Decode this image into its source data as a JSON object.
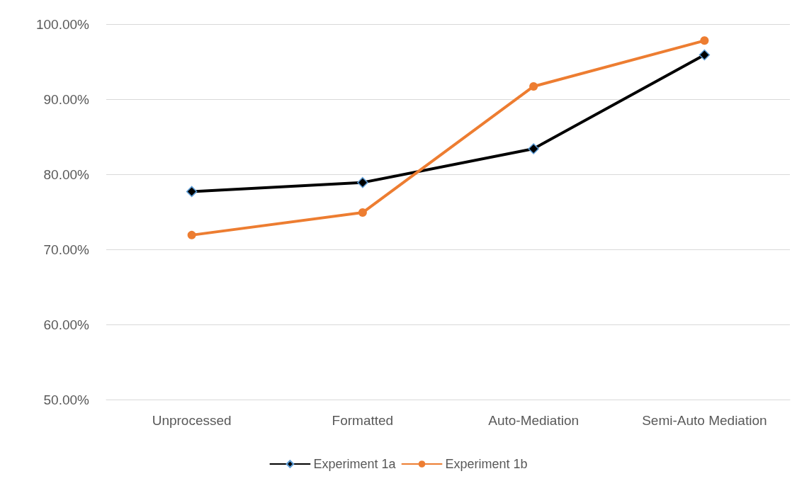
{
  "chart_data": {
    "type": "line",
    "categories": [
      "Unprocessed",
      "Formatted",
      "Auto-Mediation",
      "Semi-Auto Mediation"
    ],
    "series": [
      {
        "name": "Experiment 1a",
        "color": "#000000",
        "marker": "diamond",
        "values": [
          77.7,
          78.9,
          83.4,
          95.9
        ]
      },
      {
        "name": "Experiment 1b",
        "color": "#ed7d31",
        "marker": "circle",
        "values": [
          71.9,
          74.9,
          91.7,
          97.8
        ]
      }
    ],
    "ylim": [
      50,
      100
    ],
    "yticks": [
      {
        "value": 50,
        "label": "50.00%"
      },
      {
        "value": 60,
        "label": "60.00%"
      },
      {
        "value": 70,
        "label": "70.00%"
      },
      {
        "value": 80,
        "label": "80.00%"
      },
      {
        "value": 90,
        "label": "90.00%"
      },
      {
        "value": 100,
        "label": "100.00%"
      }
    ],
    "grid": "y",
    "legend": "bottom",
    "line_style": "solid"
  }
}
